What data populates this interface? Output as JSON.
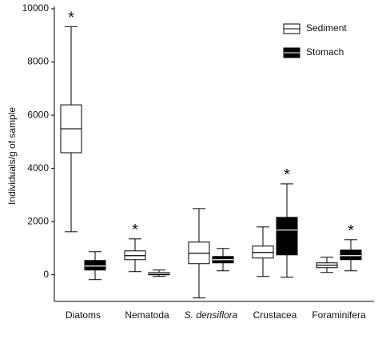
{
  "chart_data": {
    "type": "box",
    "y_label": "Individuals/g of sample",
    "categories": [
      "Diatoms",
      "Nematoda",
      "S. densiflora",
      "Crustacea",
      "Foraminifera"
    ],
    "italic_categories": [
      false,
      false,
      true,
      false,
      false
    ],
    "ylim": [
      -1000,
      10000
    ],
    "yticks": [
      0,
      2000,
      4000,
      6000,
      8000,
      10000
    ],
    "grid": false,
    "legend": "upper right",
    "significance_label": "*",
    "series": [
      {
        "name": "Sediment",
        "color": "#ffffff",
        "whisker_low": [
          1620,
          120,
          -870,
          -60,
          90
        ],
        "q1": [
          4590,
          570,
          420,
          630,
          270
        ],
        "median": [
          5490,
          720,
          810,
          840,
          360
        ],
        "q3": [
          6390,
          900,
          1230,
          1080,
          450
        ],
        "whisker_high": [
          9330,
          1350,
          2490,
          1800,
          660
        ],
        "significant": [
          true,
          true,
          false,
          false,
          false
        ]
      },
      {
        "name": "Stomach",
        "color": "#000000",
        "whisker_low": [
          -180,
          -60,
          150,
          -90,
          150
        ],
        "q1": [
          180,
          0,
          450,
          750,
          570
        ],
        "median": [
          330,
          60,
          570,
          1680,
          720
        ],
        "q3": [
          540,
          90,
          690,
          2160,
          930
        ],
        "whisker_high": [
          870,
          180,
          990,
          3420,
          1320
        ],
        "significant": [
          false,
          false,
          false,
          true,
          true
        ]
      }
    ]
  }
}
